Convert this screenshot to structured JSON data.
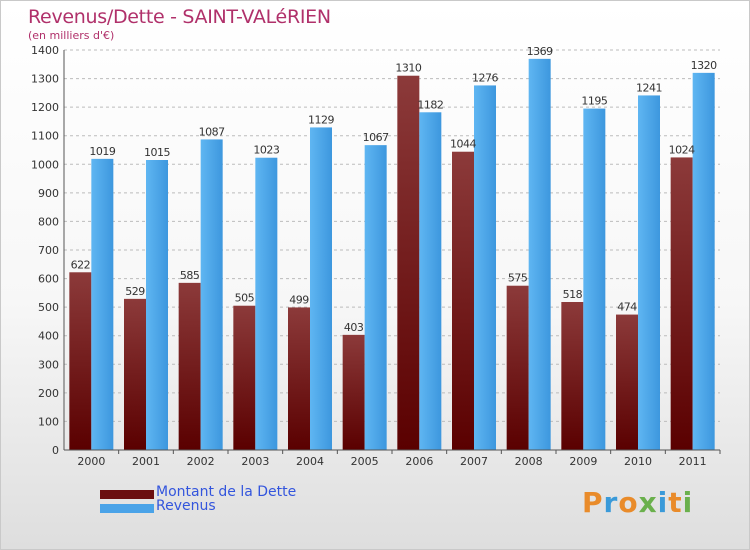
{
  "header": {
    "title": "Revenus/Dette - SAINT-VALéRIEN",
    "subtitle": "(en milliers d'€)"
  },
  "chart_data": {
    "type": "bar",
    "categories": [
      "2000",
      "2001",
      "2002",
      "2003",
      "2004",
      "2005",
      "2006",
      "2007",
      "2008",
      "2009",
      "2010",
      "2011"
    ],
    "series": [
      {
        "name": "Montant de la Dette",
        "color": "#7a1a1a",
        "values": [
          622,
          529,
          585,
          505,
          499,
          403,
          1310,
          1044,
          575,
          518,
          474,
          1024
        ]
      },
      {
        "name": "Revenus",
        "color": "#4aa3e8",
        "values": [
          1019,
          1015,
          1087,
          1023,
          1129,
          1067,
          1182,
          1276,
          1369,
          1195,
          1241,
          1320
        ]
      }
    ],
    "ylim": [
      0,
      1400
    ],
    "yticks": [
      0,
      100,
      200,
      300,
      400,
      500,
      600,
      700,
      800,
      900,
      1000,
      1100,
      1200,
      1300,
      1400
    ],
    "grid": true,
    "legend_position": "bottom-left"
  },
  "legend": [
    {
      "label": "Montant de la Dette",
      "color": "#6b0f10"
    },
    {
      "label": "Revenus",
      "color": "#4aa3e8"
    }
  ],
  "logo": {
    "text": "Proxiti",
    "letters": [
      "P",
      "r",
      "o",
      "x",
      "i",
      "t",
      "i"
    ],
    "colors": [
      "#e98b2a",
      "#3a9ad9",
      "#e98b2a",
      "#6ab04c",
      "#3a9ad9",
      "#e98b2a",
      "#6ab04c"
    ]
  }
}
